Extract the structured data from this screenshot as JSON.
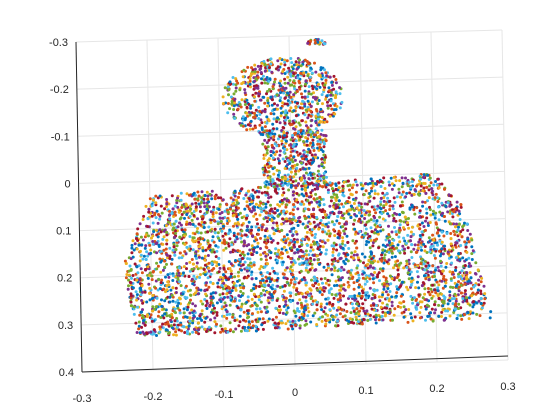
{
  "chart_data": {
    "type": "scatter",
    "view": "3-D scatter, slightly rotated perspective",
    "grid": true,
    "x_axis": {
      "ticks": [
        -0.3,
        -0.2,
        -0.1,
        0,
        0.1,
        0.2,
        0.3
      ],
      "tick_labels": [
        "-0.3",
        "-0.2",
        "-0.1",
        "0",
        "0.1",
        "0.2",
        "0.3"
      ],
      "xlim": [
        -0.3,
        0.3
      ]
    },
    "y_axis": {
      "ticks": [
        -0.3,
        -0.2,
        -0.1,
        0,
        0.1,
        0.2,
        0.3,
        0.4
      ],
      "tick_labels": [
        "-0.3",
        "-0.2",
        "-0.1",
        "0",
        "0.1",
        "0.2",
        "0.3",
        "0.4"
      ],
      "ylim": [
        -0.3,
        0.4
      ],
      "direction": "reversed"
    },
    "marker_colors": [
      "#0072bd",
      "#d95319",
      "#edb120",
      "#7e2f8e",
      "#77ac30",
      "#4dbeee",
      "#a2142f"
    ],
    "regions": [
      {
        "shape": "ellipse",
        "cx": -0.01,
        "cy": -0.17,
        "rx": 0.085,
        "ry": 0.085,
        "points": 700
      },
      {
        "shape": "ellipse",
        "cx": 0.04,
        "cy": -0.285,
        "rx": 0.015,
        "ry": 0.006,
        "points": 25
      },
      {
        "shape": "rect",
        "x": [
          -0.04,
          0.05
        ],
        "y": [
          -0.1,
          0.02
        ],
        "points": 400
      },
      {
        "shape": "polygon",
        "vertices": [
          [
            -0.2,
            0.03
          ],
          [
            0.2,
            0.0
          ],
          [
            0.24,
            0.07
          ],
          [
            0.28,
            0.31
          ],
          [
            -0.22,
            0.33
          ],
          [
            -0.24,
            0.18
          ]
        ],
        "points": 4200
      }
    ]
  }
}
